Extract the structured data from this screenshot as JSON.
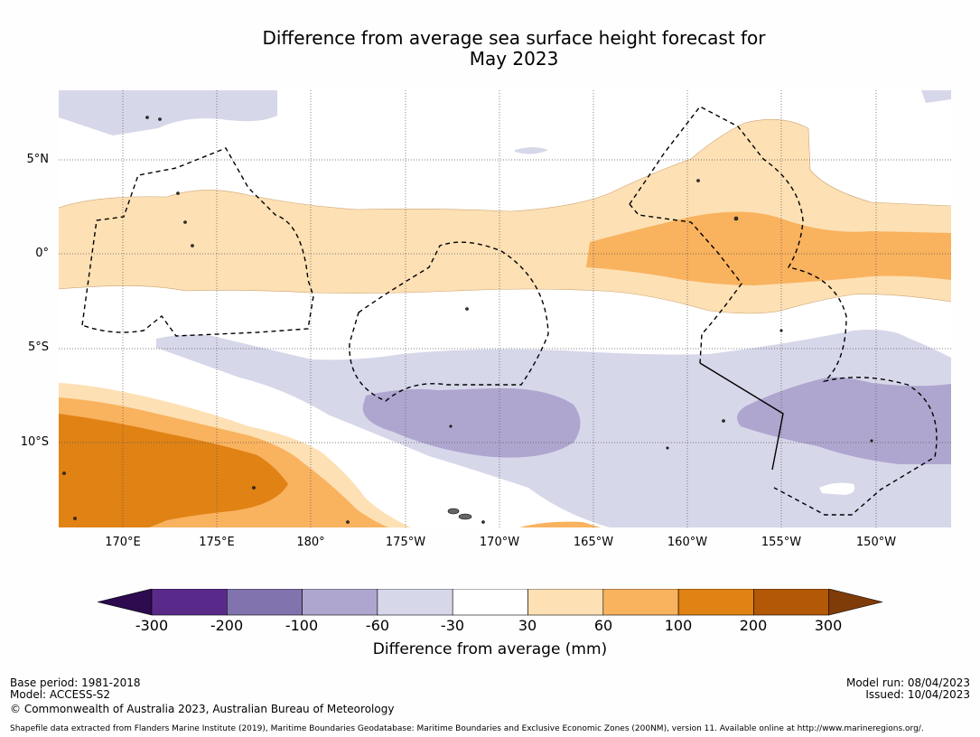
{
  "title": {
    "line1": "Difference from average sea surface height forecast for",
    "line2": "May 2023"
  },
  "map": {
    "lat_labels": [
      "5°N",
      "0°",
      "5°S",
      "10°S"
    ],
    "lon_labels": [
      "170°E",
      "175°E",
      "180°",
      "175°W",
      "170°W",
      "165°W",
      "160°W",
      "155°W",
      "150°W"
    ]
  },
  "colorbar": {
    "ticks": [
      "-300",
      "-200",
      "-100",
      "-60",
      "-30",
      "30",
      "60",
      "100",
      "200",
      "300"
    ],
    "colors": [
      "#2d0b4e",
      "#5a2a8a",
      "#8173ad",
      "#afa6cf",
      "#d7d7ea",
      "#ffffff",
      "#fde0b4",
      "#f9b25e",
      "#e08214",
      "#b35806",
      "#7f3b08"
    ],
    "label": "Difference from average (mm)"
  },
  "footer": {
    "base_period": "Base period: 1981-2018",
    "model": "Model: ACCESS-S2",
    "copyright": "© Commonwealth of Australia 2023, Australian Bureau of Meteorology",
    "model_run": "Model run: 08/04/2023",
    "issued": "Issued: 10/04/2023",
    "shapefile": "Shapefile data extracted from Flanders Marine Institute (2019), Maritime Boundaries Geodatabase: Maritime Boundaries and Exclusive Economic Zones (200NM), version 11. Available online at http://www.marineregions.org/."
  }
}
